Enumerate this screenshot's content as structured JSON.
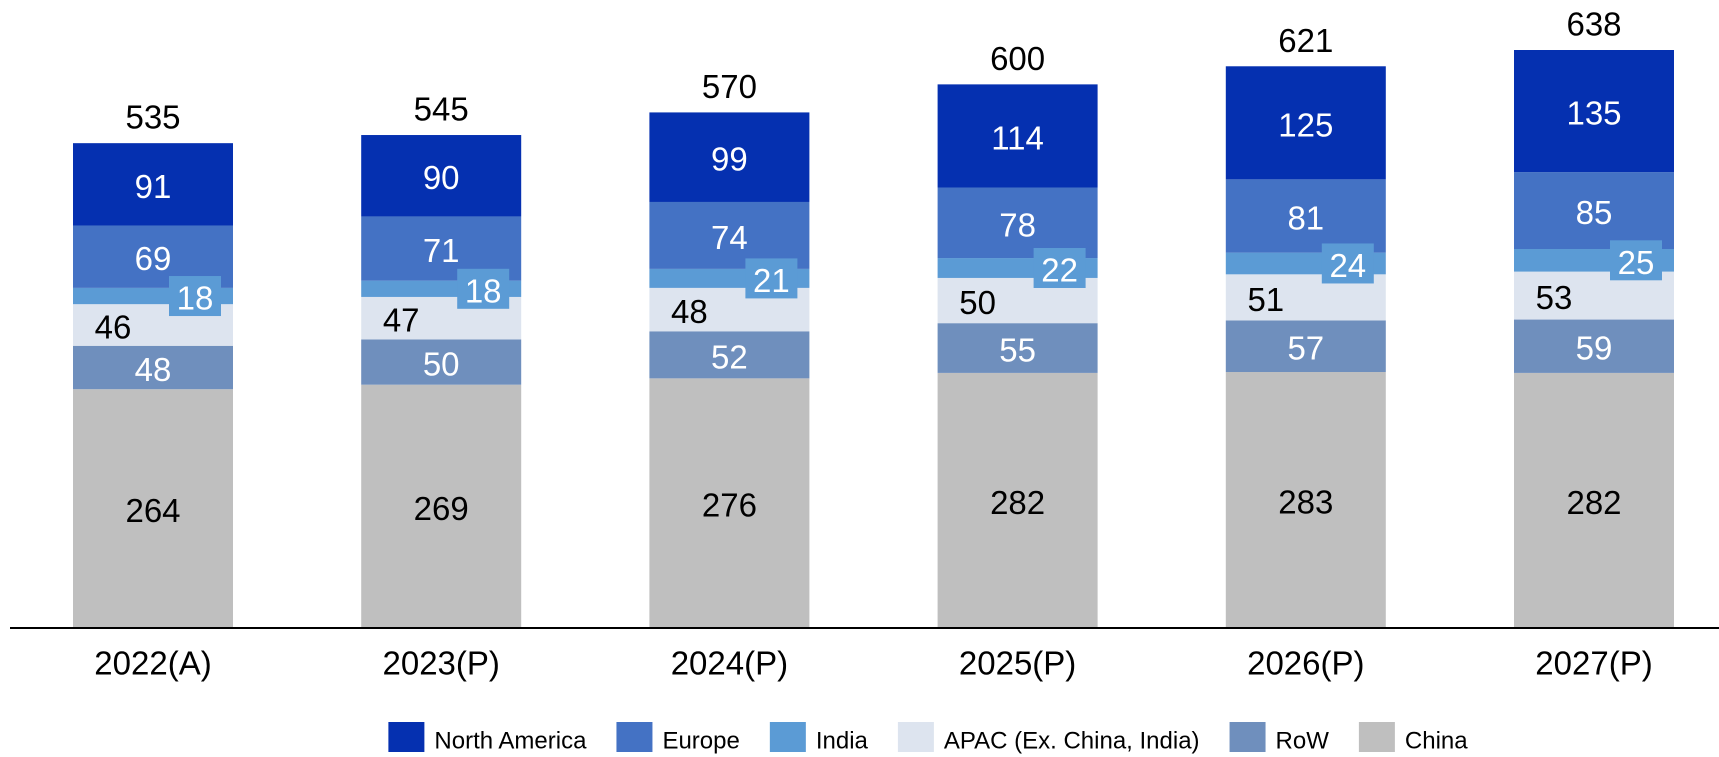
{
  "chart_data": {
    "type": "stacked_bar",
    "categories": [
      "2022(A)",
      "2023(P)",
      "2024(P)",
      "2025(P)",
      "2026(P)",
      "2027(P)"
    ],
    "series": [
      {
        "name": "North America",
        "color": "#0530b0",
        "label_color": "#ffffff",
        "values": [
          91,
          90,
          99,
          114,
          125,
          135
        ]
      },
      {
        "name": "Europe",
        "color": "#4472c4",
        "label_color": "#ffffff",
        "values": [
          69,
          71,
          74,
          78,
          81,
          85
        ]
      },
      {
        "name": "India",
        "color": "#5b9bd5",
        "label_color": "#ffffff",
        "values": [
          18,
          18,
          21,
          22,
          24,
          25
        ]
      },
      {
        "name": "APAC (Ex. China, India)",
        "color": "#dde4ef",
        "label_color": "#000000",
        "values": [
          46,
          47,
          48,
          50,
          51,
          53
        ]
      },
      {
        "name": "RoW",
        "color": "#6f8fbd",
        "label_color": "#ffffff",
        "values": [
          48,
          50,
          52,
          55,
          57,
          59
        ]
      },
      {
        "name": "China",
        "color": "#bfbfbf",
        "label_color": "#000000",
        "values": [
          264,
          269,
          276,
          282,
          283,
          282
        ]
      }
    ],
    "totals": [
      535,
      545,
      570,
      600,
      621,
      638
    ],
    "legend": "bottom"
  }
}
